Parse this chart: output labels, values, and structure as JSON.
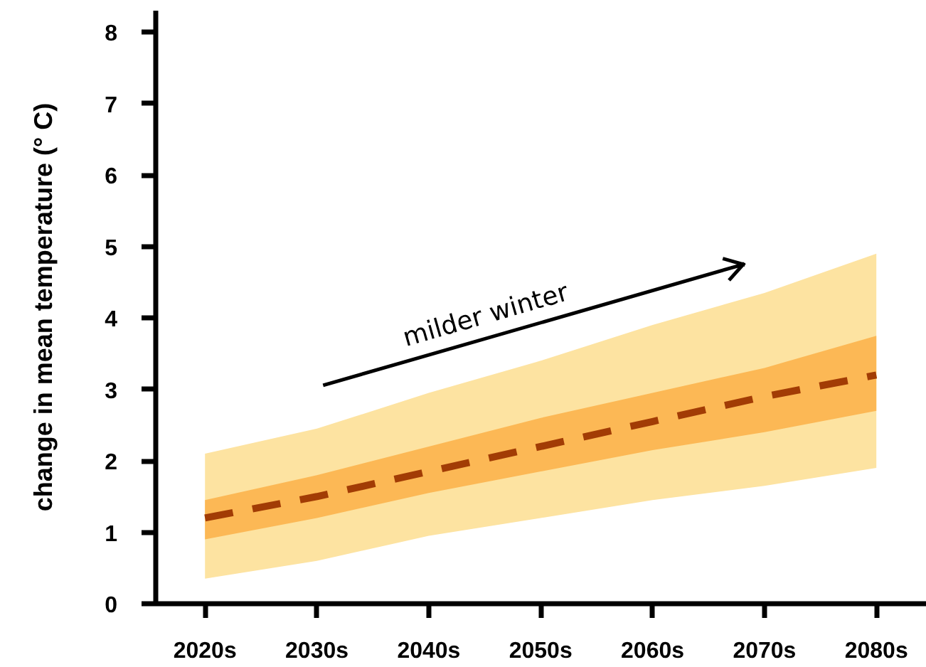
{
  "chart_data": {
    "type": "line",
    "ylabel": "change in mean temperature (° C)",
    "categories": [
      "2020s",
      "2030s",
      "2040s",
      "2050s",
      "2060s",
      "2070s",
      "2080s"
    ],
    "series": [
      {
        "color": "#fde3a1",
        "values": [
          null,
          null,
          null,
          null,
          null,
          null,
          null
        ],
        "lower": [
          0.35,
          0.6,
          0.95,
          1.2,
          1.45,
          1.65,
          1.9
        ],
        "upper": [
          2.1,
          2.45,
          2.95,
          3.4,
          3.9,
          4.35,
          4.9
        ]
      },
      {
        "color": "#fcb855",
        "values": [
          null,
          null,
          null,
          null,
          null,
          null,
          null
        ],
        "lower": [
          0.9,
          1.2,
          1.55,
          1.85,
          2.15,
          2.4,
          2.7
        ],
        "upper": [
          1.45,
          1.8,
          2.2,
          2.6,
          2.95,
          3.3,
          3.75
        ]
      },
      {
        "color": "#a23c05",
        "values": [
          1.2,
          1.5,
          1.85,
          2.2,
          2.55,
          2.9,
          3.2
        ]
      }
    ],
    "ylim": [
      0,
      8.3
    ],
    "yticks": [
      0,
      1,
      2,
      3,
      4,
      5,
      6,
      7,
      8
    ],
    "annotations": [
      "milder winter"
    ],
    "grid": false,
    "line_style": "dashed"
  }
}
